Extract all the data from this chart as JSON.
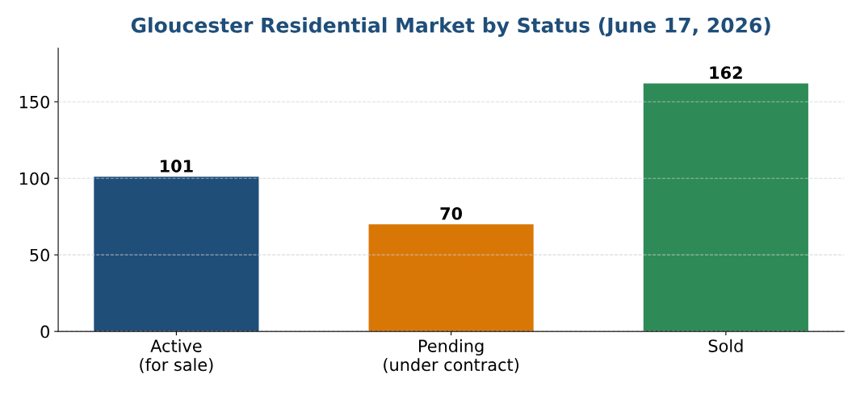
{
  "chart_data": {
    "type": "bar",
    "title": "Gloucester Residential Market by Status (June 17, 2026)",
    "categories": [
      "Active\n(for sale)",
      "Pending\n(under contract)",
      "Sold"
    ],
    "values": [
      101,
      70,
      162
    ],
    "colors": [
      "#1f4e79",
      "#d97706",
      "#2e8b57"
    ],
    "ylim": [
      0,
      185
    ],
    "yticks": [
      0,
      50,
      100,
      150
    ],
    "grid": "y",
    "data_labels": true,
    "legend": false
  }
}
